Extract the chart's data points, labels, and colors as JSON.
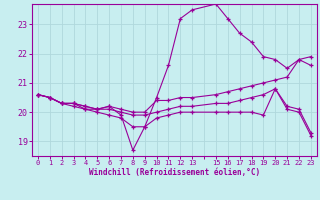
{
  "background_color": "#c8eef0",
  "grid_color": "#b0d8dc",
  "line_color": "#990099",
  "xlabel": "Windchill (Refroidissement éolien,°C)",
  "xlim": [
    -0.5,
    23.5
  ],
  "ylim": [
    18.5,
    23.7
  ],
  "yticks": [
    19,
    20,
    21,
    22,
    23
  ],
  "xtick_labels": [
    "0",
    "1",
    "2",
    "3",
    "4",
    "5",
    "6",
    "7",
    "8",
    "9",
    "10",
    "11",
    "12",
    "13",
    "",
    "15",
    "16",
    "17",
    "18",
    "19",
    "20",
    "21",
    "22",
    "23"
  ],
  "xtick_positions": [
    0,
    1,
    2,
    3,
    4,
    5,
    6,
    7,
    8,
    9,
    10,
    11,
    12,
    13,
    14,
    15,
    16,
    17,
    18,
    19,
    20,
    21,
    22,
    23
  ],
  "lines": [
    {
      "x": [
        0,
        1,
        2,
        3,
        4,
        5,
        6,
        7,
        8,
        9,
        10,
        11,
        12,
        13,
        15,
        16,
        17,
        18,
        19,
        20,
        21,
        22,
        23
      ],
      "y": [
        20.6,
        20.5,
        20.3,
        20.3,
        20.1,
        20.1,
        20.2,
        19.9,
        18.7,
        19.5,
        20.5,
        21.6,
        23.2,
        23.5,
        23.7,
        23.2,
        22.7,
        22.4,
        21.9,
        21.8,
        21.5,
        21.8,
        21.6
      ]
    },
    {
      "x": [
        0,
        1,
        2,
        3,
        4,
        5,
        6,
        7,
        8,
        9,
        10,
        11,
        12,
        13,
        15,
        16,
        17,
        18,
        19,
        20,
        21,
        22,
        23
      ],
      "y": [
        20.6,
        20.5,
        20.3,
        20.3,
        20.2,
        20.1,
        20.2,
        20.1,
        20.0,
        20.0,
        20.4,
        20.4,
        20.5,
        20.5,
        20.6,
        20.7,
        20.8,
        20.9,
        21.0,
        21.1,
        21.2,
        21.8,
        21.9
      ]
    },
    {
      "x": [
        0,
        1,
        2,
        3,
        4,
        5,
        6,
        7,
        8,
        9,
        10,
        11,
        12,
        13,
        15,
        16,
        17,
        18,
        19,
        20,
        21,
        22,
        23
      ],
      "y": [
        20.6,
        20.5,
        20.3,
        20.3,
        20.2,
        20.1,
        20.1,
        20.0,
        19.9,
        19.9,
        20.0,
        20.1,
        20.2,
        20.2,
        20.3,
        20.3,
        20.4,
        20.5,
        20.6,
        20.8,
        20.2,
        20.1,
        19.3
      ]
    },
    {
      "x": [
        0,
        1,
        2,
        3,
        4,
        5,
        6,
        7,
        8,
        9,
        10,
        11,
        12,
        13,
        15,
        16,
        17,
        18,
        19,
        20,
        21,
        22,
        23
      ],
      "y": [
        20.6,
        20.5,
        20.3,
        20.2,
        20.1,
        20.0,
        19.9,
        19.8,
        19.5,
        19.5,
        19.8,
        19.9,
        20.0,
        20.0,
        20.0,
        20.0,
        20.0,
        20.0,
        19.9,
        20.8,
        20.1,
        20.0,
        19.2
      ]
    }
  ]
}
